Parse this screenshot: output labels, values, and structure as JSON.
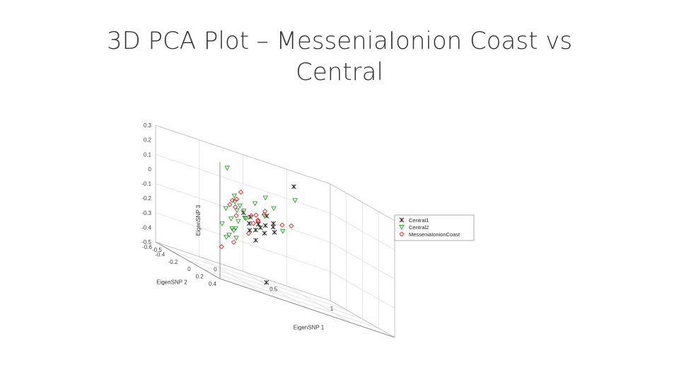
{
  "slide": {
    "title_line1": "3D PCA Plot – MesseniaIonion Coast vs",
    "title_line2": "Central"
  },
  "chart_data": {
    "type": "scatter",
    "projection": "3d",
    "grid": true,
    "legend_placement": "right",
    "axes": {
      "x": {
        "label": "EigenSNP 1",
        "range": [
          -0.5,
          1
        ],
        "ticks": [
          "-0.5",
          "0",
          "0.5",
          "1"
        ]
      },
      "y": {
        "label": "EigenSNP 2",
        "range": [
          -0.6,
          0.4
        ],
        "ticks": [
          "-0.6",
          "-0.4",
          "-0.2",
          "0",
          "0.2",
          "0.4"
        ]
      },
      "z": {
        "label": "EigenSNP 3",
        "range": [
          -0.5,
          0.3
        ],
        "ticks": [
          "0.3",
          "0.2",
          "0.1",
          "0",
          "-0.1",
          "-0.2",
          "-0.3",
          "-0.4",
          "-0.5"
        ]
      }
    },
    "series": [
      {
        "name": "Central1",
        "marker": "x",
        "color": "#222222",
        "points": [
          [
            0.3,
            0.1,
            0.27
          ],
          [
            0.0,
            -0.05,
            -0.1
          ],
          [
            0.05,
            0.0,
            -0.08
          ],
          [
            0.1,
            0.02,
            -0.07
          ],
          [
            -0.05,
            -0.05,
            -0.04
          ],
          [
            0.08,
            -0.02,
            -0.1
          ],
          [
            0.15,
            0.05,
            -0.06
          ],
          [
            0.12,
            -0.03,
            -0.13
          ],
          [
            -0.02,
            0.0,
            -0.05
          ],
          [
            0.02,
            -0.08,
            -0.15
          ],
          [
            0.18,
            0.0,
            -0.04
          ],
          [
            0.2,
            -0.02,
            -0.1
          ],
          [
            0.1,
            0.04,
            0.0
          ],
          [
            0.05,
            -0.04,
            -0.2
          ],
          [
            0.0,
            0.05,
            -0.12
          ],
          [
            0.12,
            0.0,
            -0.46
          ]
        ]
      },
      {
        "name": "Central2",
        "marker": "triangle-down",
        "color": "#2ca02c",
        "points": [
          [
            -0.3,
            0.15,
            0.25
          ],
          [
            0.2,
            0.3,
            0.2
          ],
          [
            0.1,
            0.02,
            0.12
          ],
          [
            -0.1,
            -0.1,
            0.05
          ],
          [
            -0.15,
            0.0,
            0.02
          ],
          [
            -0.2,
            -0.05,
            -0.05
          ],
          [
            -0.1,
            -0.15,
            -0.12
          ],
          [
            -0.05,
            -0.2,
            -0.2
          ],
          [
            -0.12,
            -0.1,
            -0.18
          ],
          [
            -0.18,
            -0.08,
            -0.25
          ],
          [
            0.0,
            -0.12,
            -0.08
          ],
          [
            0.05,
            0.1,
            0.0
          ],
          [
            -0.08,
            -0.05,
            0.0
          ],
          [
            -0.15,
            0.05,
            -0.1
          ],
          [
            0.0,
            -0.25,
            -0.25
          ],
          [
            -0.05,
            -0.15,
            -0.05
          ],
          [
            0.15,
            0.2,
            -0.05
          ],
          [
            -0.2,
            0.0,
            -0.22
          ],
          [
            -0.03,
            -0.08,
            -0.03
          ],
          [
            -0.1,
            0.08,
            -0.06
          ],
          [
            0.05,
            -0.05,
            0.05
          ],
          [
            -0.15,
            -0.2,
            -0.18
          ],
          [
            -0.2,
            0.1,
            -0.15
          ],
          [
            0.1,
            0.15,
            0.08
          ]
        ]
      },
      {
        "name": "MesseniaIonionCoast",
        "marker": "diamond",
        "color": "#d62728",
        "points": [
          [
            -0.1,
            0.0,
            0.1
          ],
          [
            -0.2,
            0.05,
            0.03
          ],
          [
            -0.25,
            0.1,
            0.0
          ],
          [
            0.05,
            0.0,
            -0.06
          ],
          [
            0.02,
            0.02,
            -0.02
          ],
          [
            0.0,
            -0.02,
            -0.04
          ],
          [
            0.08,
            0.05,
            0.03
          ],
          [
            0.2,
            0.1,
            -0.02
          ],
          [
            0.25,
            0.15,
            0.0
          ],
          [
            -0.05,
            -0.2,
            -0.28
          ],
          [
            -0.1,
            -0.3,
            -0.35
          ],
          [
            -0.15,
            0.02,
            -0.07
          ],
          [
            0.1,
            0.0,
            0.0
          ],
          [
            -0.02,
            0.05,
            -0.08
          ],
          [
            0.03,
            0.03,
            -0.05
          ],
          [
            -0.18,
            0.08,
            0.05
          ],
          [
            0.05,
            -0.15,
            -0.18
          ],
          [
            -0.12,
            -0.05,
            -0.02
          ]
        ]
      }
    ]
  }
}
